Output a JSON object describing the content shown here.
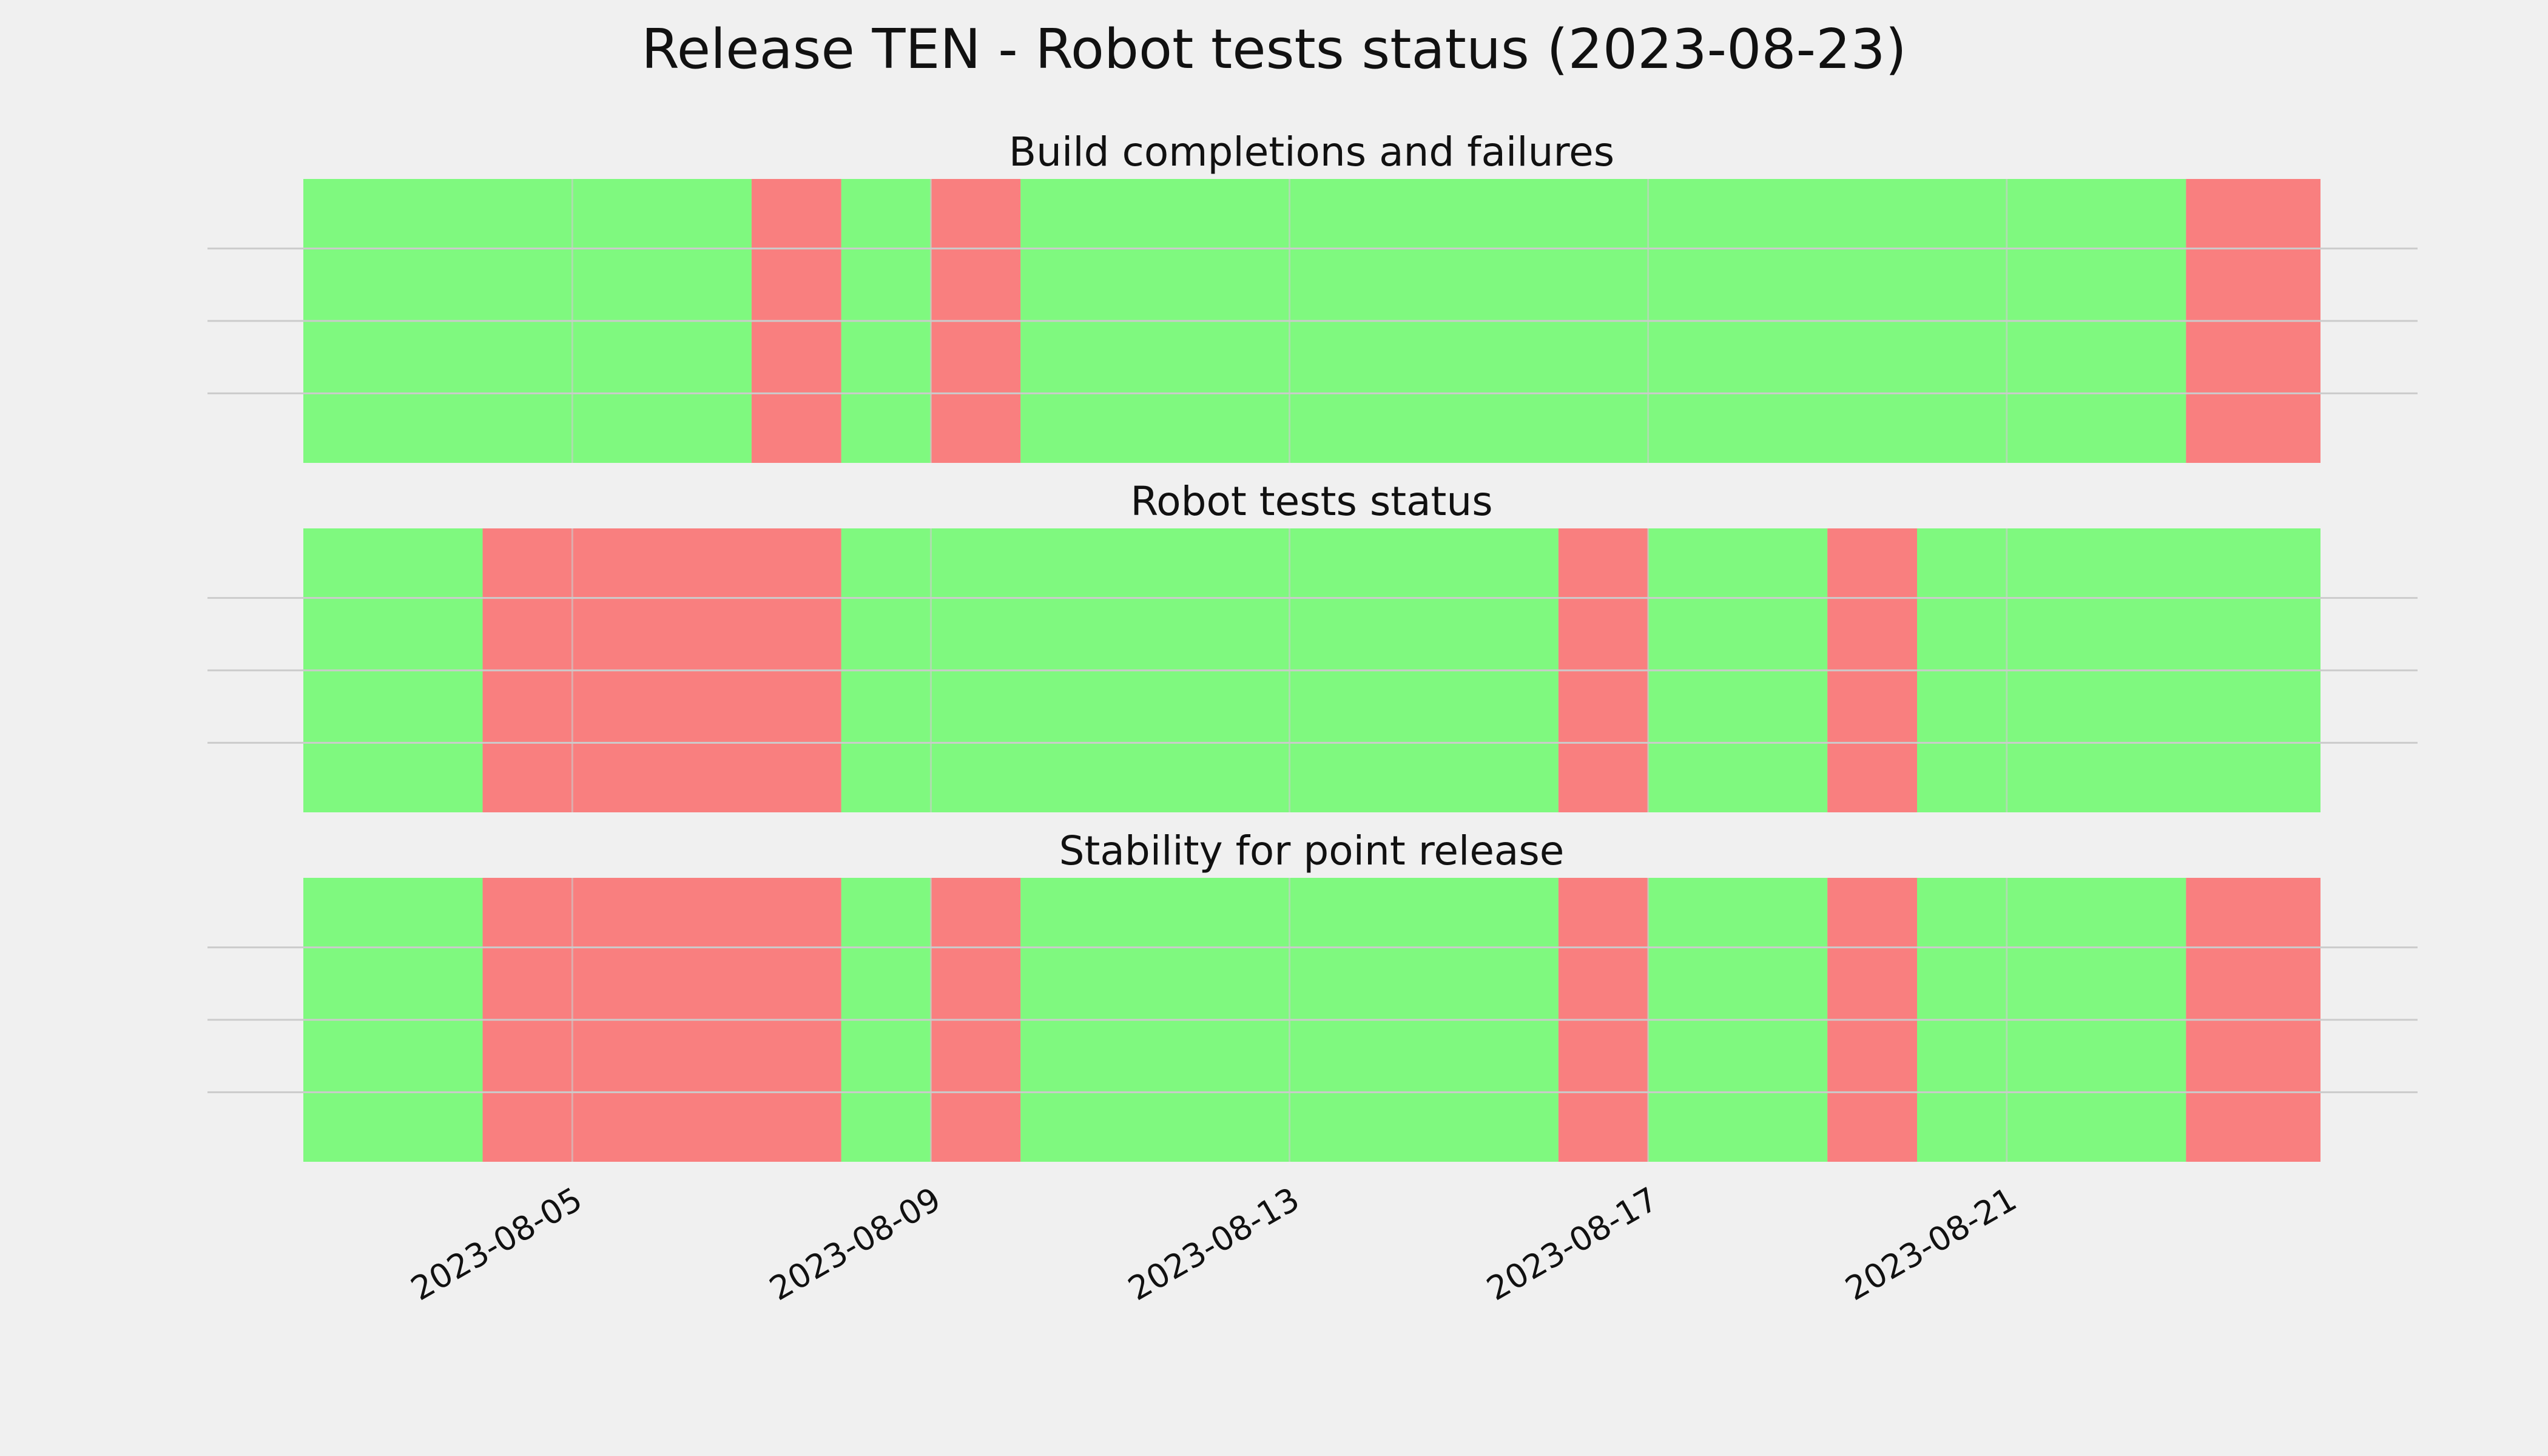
{
  "title": "Release TEN - Robot tests status (2023-08-23)",
  "colors": {
    "pass": "#33ff33",
    "fail": "#ff3333",
    "background": "#f0f0f0",
    "grid": "#cbcbcb"
  },
  "chart_data": {
    "type": "bar",
    "orientation": "horizontal-timeline",
    "grid": true,
    "xlim": [
      "2023-08-02",
      "2023-08-24T12:00"
    ],
    "xticks": [
      "2023-08-05",
      "2023-08-09",
      "2023-08-13",
      "2023-08-17",
      "2023-08-21"
    ],
    "panels": [
      {
        "title": "Build completions and failures",
        "segments": [
          {
            "start": "2023-08-02",
            "end": "2023-08-07",
            "status": "pass"
          },
          {
            "start": "2023-08-07",
            "end": "2023-08-08",
            "status": "fail"
          },
          {
            "start": "2023-08-08",
            "end": "2023-08-09",
            "status": "pass"
          },
          {
            "start": "2023-08-09",
            "end": "2023-08-10",
            "status": "fail"
          },
          {
            "start": "2023-08-10",
            "end": "2023-08-23",
            "status": "pass"
          },
          {
            "start": "2023-08-23",
            "end": "2023-08-24T12:00",
            "status": "fail"
          }
        ]
      },
      {
        "title": "Robot tests status",
        "segments": [
          {
            "start": "2023-08-02",
            "end": "2023-08-04",
            "status": "pass"
          },
          {
            "start": "2023-08-04",
            "end": "2023-08-08",
            "status": "fail"
          },
          {
            "start": "2023-08-08",
            "end": "2023-08-16",
            "status": "pass"
          },
          {
            "start": "2023-08-16",
            "end": "2023-08-17",
            "status": "fail"
          },
          {
            "start": "2023-08-17",
            "end": "2023-08-19",
            "status": "pass"
          },
          {
            "start": "2023-08-19",
            "end": "2023-08-20",
            "status": "fail"
          },
          {
            "start": "2023-08-20",
            "end": "2023-08-24T12:00",
            "status": "pass"
          }
        ]
      },
      {
        "title": "Stability for point release",
        "segments": [
          {
            "start": "2023-08-02",
            "end": "2023-08-04",
            "status": "pass"
          },
          {
            "start": "2023-08-04",
            "end": "2023-08-08",
            "status": "fail"
          },
          {
            "start": "2023-08-08",
            "end": "2023-08-09",
            "status": "pass"
          },
          {
            "start": "2023-08-09",
            "end": "2023-08-10",
            "status": "fail"
          },
          {
            "start": "2023-08-10",
            "end": "2023-08-16",
            "status": "pass"
          },
          {
            "start": "2023-08-16",
            "end": "2023-08-17",
            "status": "fail"
          },
          {
            "start": "2023-08-17",
            "end": "2023-08-19",
            "status": "pass"
          },
          {
            "start": "2023-08-19",
            "end": "2023-08-20",
            "status": "fail"
          },
          {
            "start": "2023-08-20",
            "end": "2023-08-23",
            "status": "pass"
          },
          {
            "start": "2023-08-23",
            "end": "2023-08-24T12:00",
            "status": "fail"
          }
        ]
      }
    ]
  }
}
